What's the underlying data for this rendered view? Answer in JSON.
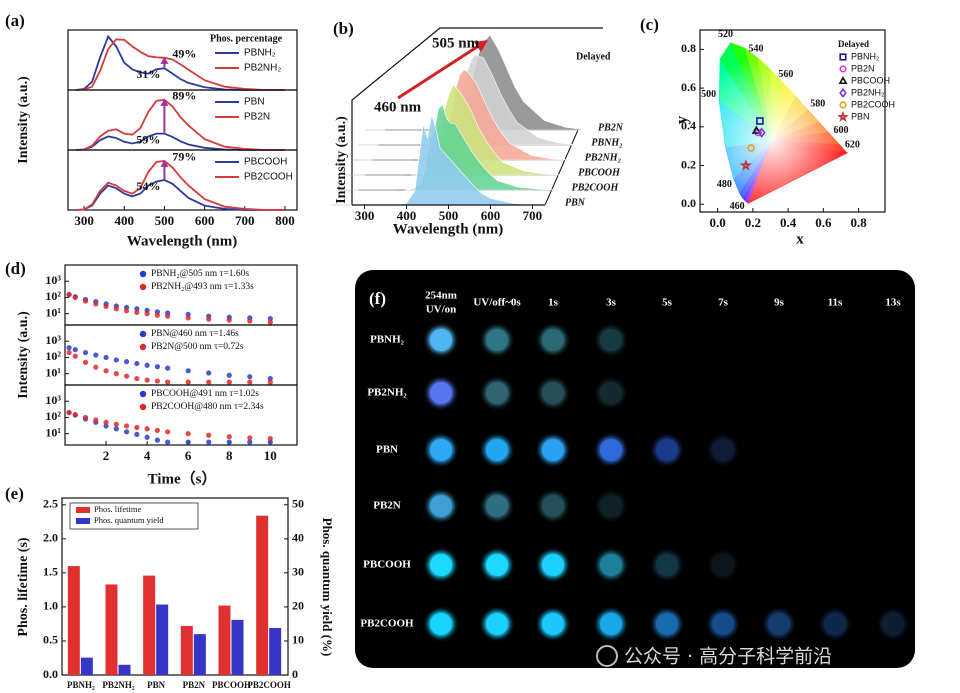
{
  "chart_data": [
    {
      "type": "line",
      "panel": "(a)",
      "legend_title": "Phos. percentage",
      "x": [
        280,
        300,
        320,
        340,
        360,
        380,
        400,
        420,
        440,
        460,
        480,
        500,
        520,
        540,
        560,
        600,
        650,
        700,
        750,
        800
      ],
      "xlim": [
        260,
        830
      ],
      "ylim": [
        0,
        1.1
      ],
      "series": [
        {
          "name": "PBNH₂",
          "color": "#2b3a9c",
          "values": [
            0,
            0.02,
            0.15,
            0.6,
            0.98,
            0.8,
            0.5,
            0.38,
            0.32,
            0.3,
            0.38,
            0.4,
            0.3,
            0.2,
            0.13,
            0.05,
            0.01,
            0,
            0,
            0
          ]
        },
        {
          "name": "PB2NH₂",
          "color": "#d43c3c",
          "values": [
            0,
            0.01,
            0.06,
            0.35,
            0.75,
            0.93,
            0.92,
            0.8,
            0.7,
            0.62,
            0.6,
            0.59,
            0.56,
            0.47,
            0.37,
            0.18,
            0.06,
            0.02,
            0,
            0
          ]
        }
      ],
      "annotations": [
        {
          "text": "49%",
          "color": "#d43c3c"
        },
        {
          "text": "31%",
          "color": "#1e8fa6"
        }
      ]
    },
    {
      "type": "line",
      "y_label": "Intensity (a.u.)",
      "x": [
        280,
        300,
        320,
        340,
        360,
        380,
        400,
        420,
        440,
        460,
        480,
        500,
        520,
        540,
        560,
        600,
        650,
        700,
        750,
        800
      ],
      "xlim": [
        260,
        830
      ],
      "ylim": [
        0,
        1.1
      ],
      "series": [
        {
          "name": "PBN",
          "color": "#2b3a9c",
          "values": [
            0,
            0.01,
            0.06,
            0.18,
            0.25,
            0.22,
            0.15,
            0.12,
            0.15,
            0.25,
            0.3,
            0.3,
            0.24,
            0.16,
            0.1,
            0.04,
            0.01,
            0,
            0,
            0
          ]
        },
        {
          "name": "PB2N",
          "color": "#d43c3c",
          "values": [
            0,
            0.01,
            0.08,
            0.25,
            0.35,
            0.38,
            0.3,
            0.28,
            0.4,
            0.7,
            0.9,
            0.92,
            0.8,
            0.6,
            0.45,
            0.2,
            0.06,
            0.02,
            0,
            0
          ]
        }
      ],
      "annotations": [
        {
          "text": "89%",
          "color": "#d43c3c"
        },
        {
          "text": "59%",
          "color": "#1e8fa6"
        }
      ]
    },
    {
      "type": "line",
      "x_label": "Wavelength (nm)",
      "x": [
        280,
        300,
        320,
        340,
        360,
        380,
        400,
        420,
        440,
        460,
        480,
        500,
        520,
        540,
        560,
        600,
        650,
        700,
        750,
        800
      ],
      "xlim": [
        260,
        830
      ],
      "xticks": [
        300,
        400,
        500,
        600,
        700,
        800
      ],
      "ylim": [
        0,
        1.1
      ],
      "series": [
        {
          "name": "PBCOOH",
          "color": "#2b3a9c",
          "values": [
            0,
            0.01,
            0.08,
            0.3,
            0.45,
            0.4,
            0.3,
            0.25,
            0.3,
            0.45,
            0.52,
            0.55,
            0.48,
            0.35,
            0.22,
            0.08,
            0.02,
            0,
            0,
            0
          ]
        },
        {
          "name": "PB2COOH",
          "color": "#d43c3c",
          "values": [
            0,
            0.01,
            0.1,
            0.35,
            0.5,
            0.45,
            0.35,
            0.3,
            0.4,
            0.7,
            0.88,
            0.9,
            0.78,
            0.6,
            0.45,
            0.2,
            0.06,
            0.02,
            0,
            0
          ]
        }
      ],
      "annotations": [
        {
          "text": "79%",
          "color": "#d43c3c"
        },
        {
          "text": "54%",
          "color": "#1e8fa6"
        }
      ]
    },
    {
      "type": "waterfall",
      "panel": "(b)",
      "title": "Delayed",
      "x_label": "Wavelength (nm)",
      "y_label": "Intensity (a.u.)",
      "annotations": [
        {
          "text": "505 nm",
          "color": "#d42020"
        },
        {
          "text": "460 nm",
          "color": "#d42020"
        }
      ],
      "x": [
        380,
        400,
        420,
        430,
        440,
        450,
        460,
        470,
        480,
        490,
        500,
        520,
        540,
        560,
        580,
        600,
        650,
        700,
        750
      ],
      "xlim": [
        270,
        730
      ],
      "xticks": [
        300,
        400,
        500,
        600,
        700
      ],
      "ylim": [
        0,
        1
      ],
      "series": [
        {
          "name": "PB2N",
          "color": "#8c8c8c",
          "values": [
            0,
            0,
            0,
            0.02,
            0.05,
            0.1,
            0.2,
            0.35,
            0.55,
            0.75,
            0.9,
            1.0,
            0.85,
            0.65,
            0.45,
            0.3,
            0.1,
            0.03,
            0
          ]
        },
        {
          "name": "PBNH₂",
          "color": "#d2d2d2",
          "values": [
            0,
            0,
            0.01,
            0.03,
            0.08,
            0.18,
            0.35,
            0.55,
            0.75,
            0.88,
            0.95,
            0.92,
            0.75,
            0.55,
            0.38,
            0.24,
            0.08,
            0.02,
            0
          ]
        },
        {
          "name": "PB2NH₂",
          "color": "#f5a898",
          "values": [
            0,
            0,
            0.02,
            0.06,
            0.15,
            0.3,
            0.5,
            0.75,
            0.9,
            0.95,
            0.92,
            0.8,
            0.6,
            0.42,
            0.28,
            0.17,
            0.05,
            0.01,
            0
          ]
        },
        {
          "name": "PBCOOH",
          "color": "#cde27c",
          "values": [
            0,
            0,
            0.04,
            0.12,
            0.3,
            0.45,
            0.7,
            0.85,
            0.95,
            0.9,
            0.85,
            0.7,
            0.5,
            0.35,
            0.22,
            0.13,
            0.04,
            0.01,
            0
          ]
        },
        {
          "name": "PB2COOH",
          "color": "#62d494",
          "values": [
            0,
            0.01,
            0.08,
            0.25,
            0.55,
            0.6,
            0.85,
            0.9,
            0.75,
            0.7,
            0.7,
            0.55,
            0.4,
            0.28,
            0.18,
            0.1,
            0.03,
            0.01,
            0
          ]
        },
        {
          "name": "PBN",
          "color": "#92cbef",
          "values": [
            0,
            0.02,
            0.15,
            0.5,
            0.85,
            0.7,
            0.95,
            0.8,
            0.6,
            0.55,
            0.5,
            0.4,
            0.3,
            0.2,
            0.12,
            0.07,
            0.02,
            0,
            0
          ]
        }
      ]
    },
    {
      "type": "cie",
      "panel": "(c)",
      "legend_title": "Delayed",
      "x_label": "x",
      "y_label": "y",
      "xlim": [
        -0.1,
        0.95
      ],
      "ylim": [
        -0.04,
        0.9
      ],
      "xticks": [
        {
          "value": 0,
          "label": "0.0"
        },
        0.2,
        0.4,
        0.6,
        0.8
      ],
      "yticks": [
        {
          "value": 0,
          "label": "0.0"
        },
        0.2,
        0.4,
        0.6,
        0.8
      ],
      "wavelength_labels": [
        460,
        480,
        500,
        520,
        540,
        560,
        580,
        600,
        620
      ],
      "series": [
        {
          "name": "PBNH₂",
          "color": "#1a1aa0",
          "marker": "square",
          "x": [
            0.24
          ],
          "values": [
            0.43
          ]
        },
        {
          "name": "PB2N",
          "color": "#e040e0",
          "marker": "circle",
          "x": [
            0.23
          ],
          "values": [
            0.37
          ]
        },
        {
          "name": "PBCOOH",
          "color": "#111111",
          "marker": "triangle",
          "x": [
            0.22
          ],
          "values": [
            0.38
          ]
        },
        {
          "name": "PB2NH₂",
          "color": "#7a3cc8",
          "marker": "diamond",
          "x": [
            0.25
          ],
          "values": [
            0.37
          ]
        },
        {
          "name": "PB2COOH",
          "color": "#e8a020",
          "marker": "circle",
          "x": [
            0.19
          ],
          "values": [
            0.29
          ]
        },
        {
          "name": "PBN",
          "color": "#c03030",
          "marker": "star",
          "x": [
            0.16
          ],
          "values": [
            0.2
          ]
        }
      ]
    },
    {
      "type": "scatter",
      "panel": "(d)",
      "log_y": true,
      "x": [
        0.2,
        0.5,
        1,
        1.5,
        2,
        2.5,
        3,
        3.5,
        4,
        4.5,
        5,
        6,
        7,
        8,
        9,
        10
      ],
      "xlim": [
        0,
        11.3
      ],
      "ylim": [
        2,
        10000
      ],
      "yticks": [
        {
          "value": 10,
          "label": "10¹"
        },
        {
          "value": 100,
          "label": "10²"
        },
        {
          "value": 1000,
          "label": "10³"
        }
      ],
      "series": [
        {
          "name": "PBNH₂@505 nm τ=1.60s",
          "color": "#2a3cc8",
          "values": [
            150,
            110,
            75,
            55,
            40,
            30,
            24,
            20,
            16,
            13,
            11,
            9,
            7,
            6,
            5.5,
            5
          ]
        },
        {
          "name": "PB2NH₂@493 nm τ=1.33s",
          "color": "#e02828",
          "values": [
            150,
            100,
            60,
            40,
            28,
            20,
            15,
            12,
            10,
            8,
            7,
            5.5,
            4.5,
            4,
            3.5,
            3
          ]
        }
      ]
    },
    {
      "type": "scatter",
      "y_label": "Intensity (a.u.)",
      "log_y": true,
      "x": [
        0.2,
        0.5,
        1,
        1.5,
        2,
        2.5,
        3,
        3.5,
        4,
        4.5,
        5,
        6,
        7,
        8,
        9,
        10
      ],
      "xlim": [
        0,
        11.3
      ],
      "ylim": [
        2,
        10000
      ],
      "yticks": [
        {
          "value": 10,
          "label": "10¹"
        },
        {
          "value": 100,
          "label": "10²"
        },
        {
          "value": 1000,
          "label": "10³"
        }
      ],
      "series": [
        {
          "name": "PBN@460 nm τ=1.46s",
          "color": "#2a3cc8",
          "values": [
            400,
            300,
            200,
            140,
            100,
            70,
            55,
            42,
            33,
            27,
            22,
            15,
            11,
            8,
            6.5,
            5
          ]
        },
        {
          "name": "PB2N@500 nm τ=0.72s",
          "color": "#e02828",
          "values": [
            200,
            120,
            50,
            25,
            15,
            10,
            7,
            5,
            4,
            3.5,
            3,
            3,
            3,
            3,
            3,
            3
          ]
        }
      ]
    },
    {
      "type": "scatter",
      "x_label": "Time（s）",
      "log_y": true,
      "x": [
        0.2,
        0.5,
        1,
        1.5,
        2,
        2.5,
        3,
        3.5,
        4,
        4.5,
        5,
        6,
        7,
        8,
        9,
        10
      ],
      "xlim": [
        0,
        11.3
      ],
      "xticks": [
        2,
        4,
        6,
        8,
        10
      ],
      "ylim": [
        2,
        10000
      ],
      "yticks": [
        {
          "value": 10,
          "label": "10¹"
        },
        {
          "value": 100,
          "label": "10²"
        },
        {
          "value": 1000,
          "label": "10³"
        }
      ],
      "series": [
        {
          "name": "PBCOOH@491 nm τ=1.02s",
          "color": "#2a3cc8",
          "values": [
            200,
            140,
            80,
            50,
            30,
            20,
            13,
            9,
            6,
            4,
            3,
            3,
            3,
            3,
            3,
            3
          ]
        },
        {
          "name": "PB2COOH@480 nm τ=2.34s",
          "color": "#e02828",
          "values": [
            200,
            150,
            100,
            70,
            50,
            38,
            30,
            24,
            20,
            16,
            13,
            10,
            8,
            6.5,
            5.5,
            5
          ]
        }
      ]
    },
    {
      "type": "bar",
      "panel": "(e)",
      "y_label": "Phos. lifetime (s)",
      "y2_label": "Phos. quantum yield (%)",
      "categories": [
        "PBNH₂",
        "PB2NH₂",
        "PBN",
        "PB2N",
        "PBCOOH",
        "PB2COOH"
      ],
      "ylim": [
        0,
        2.6
      ],
      "y2lim": [
        0,
        52
      ],
      "yticks": [
        {
          "value": 0,
          "label": "0.0"
        },
        0.5,
        {
          "value": 1,
          "label": "1.0"
        },
        1.5,
        {
          "value": 2,
          "label": "2.0"
        },
        2.5
      ],
      "y2ticks": [
        0,
        10,
        20,
        30,
        40,
        50
      ],
      "series": [
        {
          "name": "Phos. lifetime",
          "color": "#e03030",
          "values": [
            1.6,
            1.33,
            1.46,
            0.72,
            1.02,
            2.34
          ]
        },
        {
          "name": "Phos. quantum yield",
          "color": "#3535c8",
          "axis": "y2",
          "values": [
            5.1,
            3,
            20.7,
            12,
            16.2,
            13.8
          ]
        }
      ]
    }
  ],
  "photo_grid": {
    "panel": "(f)",
    "columns": [
      [
        "254nm",
        "UV/on"
      ],
      "UV/off~0s",
      "1s",
      "3s",
      "5s",
      "7s",
      "9s",
      "11s",
      "13s"
    ],
    "rows": [
      {
        "name": "PBNH₂",
        "colors": [
          "#4fb5f0",
          "#2f7685",
          "#2b6a74",
          "#173a40",
          null,
          null,
          null,
          null,
          null
        ]
      },
      {
        "name": "PB2NH₂",
        "colors": [
          "#5577f0",
          "#2f6470",
          "#274f58",
          "#142a30",
          null,
          null,
          null,
          null,
          null
        ]
      },
      {
        "name": "PBN",
        "colors": [
          "#2fa8f5",
          "#23a4f0",
          "#2ba0f0",
          "#2e6ad8",
          "#1a3a8a",
          "#101c38",
          null,
          null,
          null
        ]
      },
      {
        "name": "PB2N",
        "colors": [
          "#3e9fd4",
          "#2e6e80",
          "#23505c",
          "#0f2228",
          null,
          null,
          null,
          null,
          null
        ]
      },
      {
        "name": "PBCOOH",
        "colors": [
          "#1ad8ff",
          "#1ad8ff",
          "#1cd0ff",
          "#1f7e98",
          "#123848",
          "#0c161c",
          null,
          null,
          null
        ]
      },
      {
        "name": "PB2COOH",
        "colors": [
          "#18d4ff",
          "#1ad0ff",
          "#1cc8ff",
          "#18a8e8",
          "#1a6ab0",
          "#174a88",
          "#143c6c",
          "#0f2848",
          "#0d1e34"
        ]
      }
    ]
  },
  "watermark": "公众号 · 高分子科学前沿"
}
